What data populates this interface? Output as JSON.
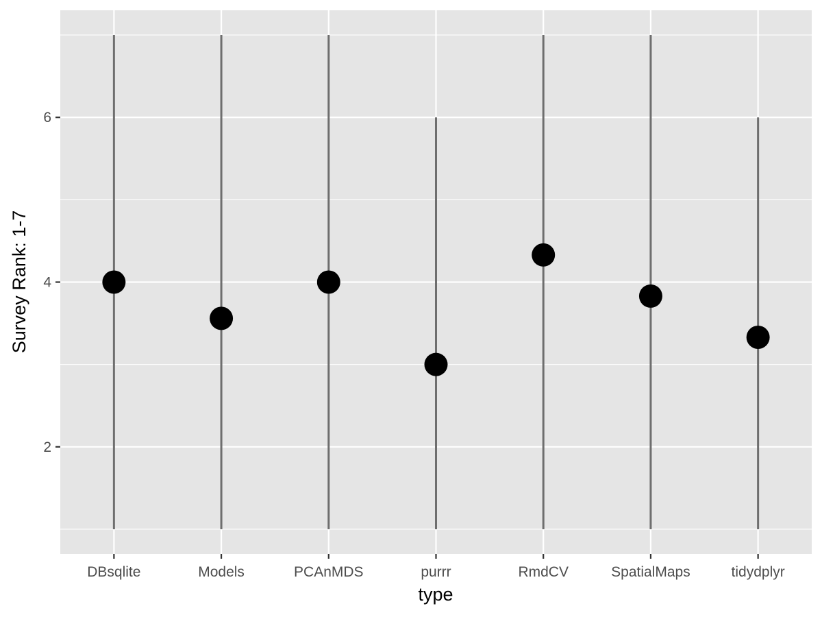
{
  "chart_data": {
    "type": "pointrange",
    "title": "",
    "xlabel": "type",
    "ylabel": "Survey Rank: 1-7",
    "categories": [
      "DBsqlite",
      "Models",
      "PCAnMDS",
      "purrr",
      "RmdCV",
      "SpatialMaps",
      "tidydplyr"
    ],
    "series": [
      {
        "mean": [
          4.0,
          3.56,
          4.0,
          3.0,
          4.33,
          3.83,
          3.33
        ],
        "min": [
          1,
          1,
          1,
          1,
          1,
          1,
          1
        ],
        "max": [
          7,
          7,
          7,
          6,
          7,
          7,
          6
        ]
      }
    ],
    "ylim": [
      0.7,
      7.3
    ],
    "y_ticks": [
      2,
      4,
      6
    ],
    "y_tick_labels": [
      "2",
      "4",
      "6"
    ],
    "grid": true,
    "colors": {
      "panel_background": "#e5e5e5",
      "grid": "#ffffff",
      "point": "#000000",
      "range_line": "#6e6e6e",
      "tick_text": "#4d4d4d",
      "axis_title": "#000000"
    }
  }
}
